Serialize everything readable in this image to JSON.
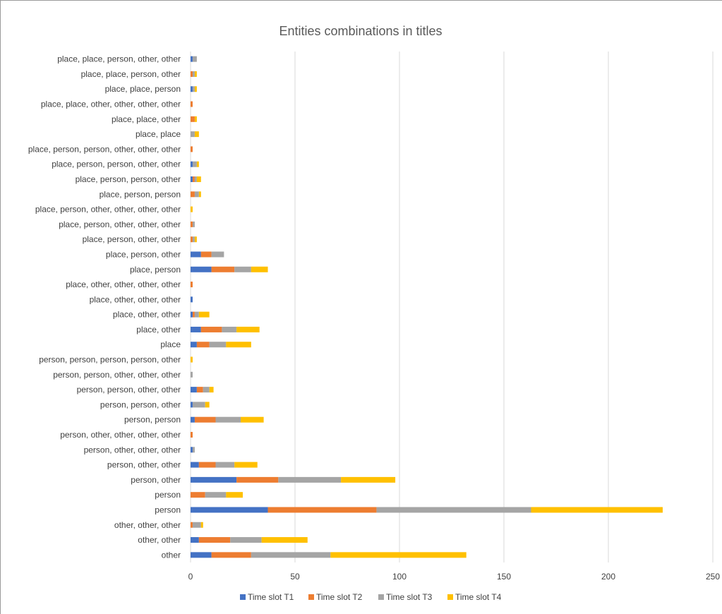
{
  "chart_data": {
    "type": "bar",
    "orientation": "horizontal",
    "stacked": true,
    "title": "Entities combinations in titles",
    "xlabel": "",
    "ylabel": "",
    "xlim": [
      0,
      250
    ],
    "x_ticks": [
      0,
      50,
      100,
      150,
      200,
      250
    ],
    "grid": true,
    "legend_position": "bottom",
    "categories": [
      "place, place, person, other, other",
      "place, place, person, other",
      "place, place, person",
      "place, place, other, other, other, other",
      "place, place, other",
      "place, place",
      "place, person, person, other, other, other",
      "place, person, person, other, other",
      "place, person, person, other",
      "place, person, person",
      "place, person, other, other, other, other",
      "place, person, other, other, other",
      "place, person, other, other",
      "place, person, other",
      "place, person",
      "place, other, other, other, other",
      "place, other, other, other",
      "place, other, other",
      "place, other",
      "place",
      "person, person, person, person, other",
      "person, person, other, other, other",
      "person, person, other, other",
      "person, person, other",
      "person, person",
      "person, other, other, other, other",
      "person, other, other, other",
      "person, other, other",
      "person, other",
      "person",
      "person",
      "other, other, other",
      "other, other",
      "other"
    ],
    "series": [
      {
        "name": "Time slot T1",
        "color": "#4472C4",
        "values": [
          1,
          0,
          1,
          0,
          0,
          0,
          0,
          1,
          1,
          0,
          0,
          0,
          0,
          5,
          10,
          0,
          1,
          1,
          5,
          3,
          0,
          0,
          3,
          1,
          2,
          0,
          1,
          4,
          22,
          0,
          37,
          0,
          4,
          10
        ]
      },
      {
        "name": "Time slot T2",
        "color": "#ED7D31",
        "values": [
          0,
          1,
          0,
          1,
          2,
          0,
          1,
          0,
          1,
          2,
          0,
          1,
          1,
          5,
          11,
          1,
          0,
          1,
          10,
          6,
          0,
          0,
          3,
          0,
          10,
          1,
          0,
          8,
          20,
          7,
          52,
          1,
          15,
          19
        ]
      },
      {
        "name": "Time slot T3",
        "color": "#A5A5A5",
        "values": [
          2,
          1,
          1,
          0,
          0,
          2,
          0,
          2,
          1,
          2,
          0,
          1,
          1,
          6,
          8,
          0,
          0,
          2,
          7,
          8,
          0,
          1,
          3,
          6,
          12,
          0,
          1,
          9,
          30,
          10,
          74,
          4,
          15,
          38
        ]
      },
      {
        "name": "Time slot T4",
        "color": "#FFC000",
        "values": [
          0,
          1,
          1,
          0,
          1,
          2,
          0,
          1,
          2,
          1,
          1,
          0,
          1,
          0,
          8,
          0,
          0,
          5,
          11,
          12,
          1,
          0,
          2,
          2,
          11,
          0,
          0,
          11,
          26,
          8,
          63,
          1,
          22,
          65
        ]
      }
    ]
  }
}
